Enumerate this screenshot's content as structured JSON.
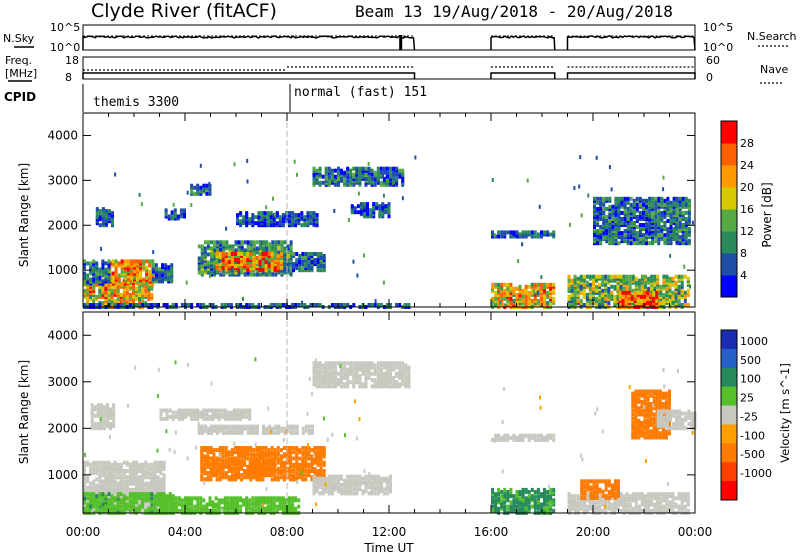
{
  "header": {
    "station": "Clyde River (fitACF)",
    "beam_info": "Beam 13 19/Aug/2018 - 20/Aug/2018"
  },
  "top_panels": {
    "nsky_label": "N.Sky",
    "nsearch_label": "N.Search",
    "noise_ticks_left": [
      "10^5",
      "10^0"
    ],
    "noise_ticks_right": [
      "10^5",
      "10^0"
    ],
    "freq_label_line1": "Freq.",
    "freq_label_line2": "[MHz]",
    "freq_ticks": [
      "18",
      "8"
    ],
    "nave_label": "Nave",
    "nave_ticks": [
      "60",
      "0"
    ],
    "cpid_label": "CPID",
    "cpid_modes": [
      {
        "name": "themis 3300",
        "start_hour": 0,
        "end_hour": 8
      },
      {
        "name": "normal (fast) 151",
        "start_hour": 8,
        "end_hour": 13
      }
    ]
  },
  "colors": {
    "power_scale": [
      "#0000ff",
      "#1e4ea8",
      "#2a8a5a",
      "#55aa44",
      "#d8c800",
      "#ff9b00",
      "#ff5f00",
      "#ff0000"
    ],
    "velocity_scale": [
      "#1a2db0",
      "#2360c8",
      "#268a5c",
      "#55c02a",
      "#c8c8c0",
      "#ffa000",
      "#ff7a00",
      "#ff4000",
      "#ff0000"
    ],
    "divider": "#bbbbbb"
  },
  "chart_data": [
    {
      "type": "heatmap",
      "title": "",
      "xlabel": "Time UT",
      "ylabel": "Slant Range [km]",
      "colorbar_label": "Power [dB]",
      "colorbar_ticks": [
        "28",
        "24",
        "20",
        "16",
        "12",
        "8",
        "4"
      ],
      "xlim": [
        0,
        24
      ],
      "ylim": [
        180,
        4500
      ],
      "x_ticks": [
        "00:00",
        "04:00",
        "08:00",
        "12:00",
        "16:00",
        "20:00",
        "00:00"
      ],
      "y_ticks": [
        "1000",
        "2000",
        "3000",
        "4000"
      ],
      "data_gaps_hours": [
        [
          13,
          16
        ],
        [
          18.5,
          19
        ]
      ],
      "regions": [
        {
          "t0": 0.0,
          "t1": 2.7,
          "r0": 180,
          "r1": 800,
          "value": 20
        },
        {
          "t0": 1.0,
          "t1": 2.7,
          "r0": 700,
          "r1": 1200,
          "value": 22
        },
        {
          "t0": 0.0,
          "t1": 1.0,
          "r0": 700,
          "r1": 1200,
          "value": 8
        },
        {
          "t0": 2.7,
          "t1": 3.5,
          "r0": 750,
          "r1": 1150,
          "value": 8
        },
        {
          "t0": 0.5,
          "t1": 1.2,
          "r0": 2000,
          "r1": 2400,
          "value": 6
        },
        {
          "t0": 3.2,
          "t1": 4.0,
          "r0": 2150,
          "r1": 2350,
          "value": 6
        },
        {
          "t0": 4.5,
          "t1": 8.2,
          "r0": 900,
          "r1": 1650,
          "value": 10
        },
        {
          "t0": 5.2,
          "t1": 7.8,
          "r0": 1000,
          "r1": 1400,
          "value": 22
        },
        {
          "t0": 8.2,
          "t1": 9.5,
          "r0": 1000,
          "r1": 1400,
          "value": 8
        },
        {
          "t0": 6.0,
          "t1": 9.2,
          "r0": 2000,
          "r1": 2300,
          "value": 6
        },
        {
          "t0": 4.2,
          "t1": 5.0,
          "r0": 2700,
          "r1": 2900,
          "value": 8
        },
        {
          "t0": 9.0,
          "t1": 12.5,
          "r0": 2900,
          "r1": 3300,
          "value": 8
        },
        {
          "t0": 10.5,
          "t1": 12.0,
          "r0": 2200,
          "r1": 2500,
          "value": 6
        },
        {
          "t0": 0.0,
          "t1": 12.8,
          "r0": 180,
          "r1": 260,
          "value": 6
        },
        {
          "t0": 16.0,
          "t1": 18.5,
          "r0": 180,
          "r1": 700,
          "value": 20
        },
        {
          "t0": 16.0,
          "t1": 18.5,
          "r0": 1750,
          "r1": 1850,
          "value": 6
        },
        {
          "t0": 19.0,
          "t1": 23.8,
          "r0": 180,
          "r1": 900,
          "value": 14
        },
        {
          "t0": 21.0,
          "t1": 22.5,
          "r0": 180,
          "r1": 500,
          "value": 28
        },
        {
          "t0": 20.0,
          "t1": 23.8,
          "r0": 1600,
          "r1": 2600,
          "value": 8
        }
      ]
    },
    {
      "type": "heatmap",
      "title": "",
      "xlabel": "Time UT",
      "ylabel": "Slant Range [km]",
      "colorbar_label": "Velocity [m s^-1]",
      "colorbar_ticks": [
        "1000",
        "500",
        "100",
        "25",
        "-25",
        "-100",
        "-500",
        "-1000"
      ],
      "xlim": [
        0,
        24
      ],
      "ylim": [
        180,
        4500
      ],
      "x_ticks": [
        "00:00",
        "04:00",
        "08:00",
        "12:00",
        "16:00",
        "20:00",
        "00:00"
      ],
      "y_ticks": [
        "1000",
        "2000",
        "3000",
        "4000"
      ],
      "data_gaps_hours": [
        [
          13,
          16
        ],
        [
          18.5,
          19
        ]
      ],
      "regions": [
        {
          "t0": 0.0,
          "t1": 3.2,
          "r0": 180,
          "r1": 1300,
          "value": 0
        },
        {
          "t0": 0.0,
          "t1": 3.5,
          "r0": 180,
          "r1": 600,
          "value": 80
        },
        {
          "t0": 3.0,
          "t1": 8.5,
          "r0": 180,
          "r1": 500,
          "value": 60
        },
        {
          "t0": 0.3,
          "t1": 1.2,
          "r0": 2000,
          "r1": 2500,
          "value": 0
        },
        {
          "t0": 3.0,
          "t1": 6.5,
          "r0": 2200,
          "r1": 2400,
          "value": 0
        },
        {
          "t0": 4.5,
          "t1": 9.0,
          "r0": 1900,
          "r1": 2050,
          "value": 0
        },
        {
          "t0": 4.6,
          "t1": 9.5,
          "r0": 900,
          "r1": 1600,
          "value": -150
        },
        {
          "t0": 6.5,
          "t1": 7.5,
          "r0": 1000,
          "r1": 1300,
          "value": -300
        },
        {
          "t0": 9.0,
          "t1": 12.8,
          "r0": 2900,
          "r1": 3400,
          "value": 0
        },
        {
          "t0": 9.0,
          "t1": 12.0,
          "r0": 600,
          "r1": 1000,
          "value": 0
        },
        {
          "t0": 16.0,
          "t1": 18.5,
          "r0": 180,
          "r1": 700,
          "value": 120
        },
        {
          "t0": 16.0,
          "t1": 18.5,
          "r0": 1750,
          "r1": 1850,
          "value": 0
        },
        {
          "t0": 19.0,
          "t1": 23.8,
          "r0": 180,
          "r1": 600,
          "value": 0
        },
        {
          "t0": 19.5,
          "t1": 21.0,
          "r0": 500,
          "r1": 900,
          "value": -150
        },
        {
          "t0": 21.5,
          "t1": 23.0,
          "r0": 1800,
          "r1": 2800,
          "value": -150
        },
        {
          "t0": 22.5,
          "t1": 24.0,
          "r0": 2000,
          "r1": 2400,
          "value": 0
        }
      ]
    }
  ]
}
